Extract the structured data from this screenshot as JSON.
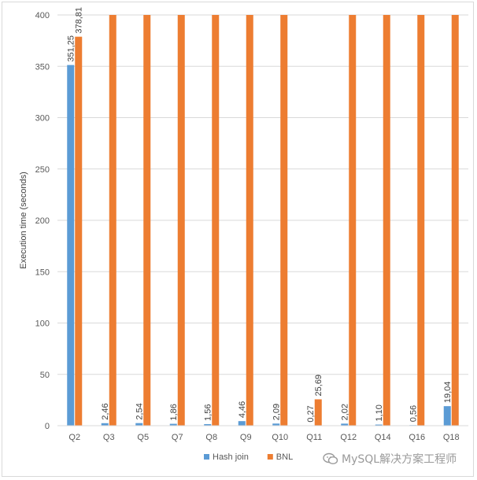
{
  "chart_data": {
    "type": "bar",
    "categories": [
      "Q2",
      "Q3",
      "Q5",
      "Q7",
      "Q8",
      "Q9",
      "Q10",
      "Q11",
      "Q12",
      "Q14",
      "Q16",
      "Q18"
    ],
    "series": [
      {
        "name": "Hash join",
        "color": "#5b9bd5",
        "values": [
          351.25,
          2.46,
          2.54,
          1.86,
          1.56,
          4.46,
          2.09,
          0.27,
          2.02,
          1.1,
          0.56,
          19.04
        ],
        "labels": [
          "351,25",
          "2,46",
          "2,54",
          "1,86",
          "1,56",
          "4,46",
          "2,09",
          "0,27",
          "2,02",
          "1,10",
          "0,56",
          "19,04"
        ]
      },
      {
        "name": "BNL",
        "color": "#ed7d31",
        "values": [
          378.81,
          400,
          400,
          400,
          400,
          400,
          400,
          25.69,
          400,
          400,
          400,
          400
        ],
        "labels": [
          "378,81",
          "",
          "",
          "",
          "",
          "",
          "",
          "25,69",
          "",
          "",
          "",
          ""
        ]
      }
    ],
    "ylabel": "Execution time (seconds)",
    "xlabel": "",
    "ylim": [
      0,
      400
    ],
    "yticks": [
      0,
      50,
      100,
      150,
      200,
      250,
      300,
      350,
      400
    ],
    "grid": true,
    "legend_position": "bottom"
  },
  "watermark": {
    "text": "MySQL解决方案工程师",
    "icon": "wechat-logo-icon"
  }
}
